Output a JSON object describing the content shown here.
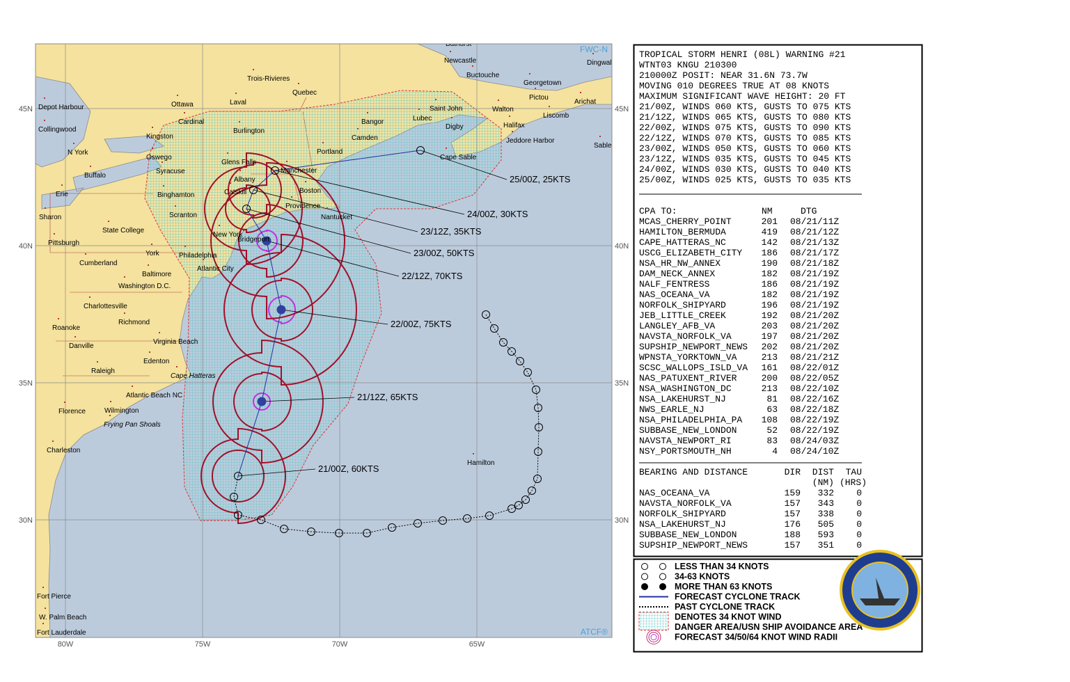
{
  "map": {
    "credits": [
      "FWC-N",
      "ATCF®"
    ],
    "lat_labels": [
      "45N",
      "40N",
      "35N",
      "30N"
    ],
    "lon_labels": [
      "80W",
      "75W",
      "70W",
      "65W"
    ],
    "places": [
      "Bathurst",
      "Newcastle",
      "Trois-Rivieres",
      "Quebec",
      "Buctouche",
      "Georgetown",
      "Dingwall",
      "Pictou",
      "Arichat",
      "Ottawa",
      "Laval",
      "Saint John",
      "Walton",
      "Liscomb",
      "Depot Harbour",
      "Cardinal",
      "Lubec",
      "Bangor",
      "Halifax",
      "Digby",
      "Collingwood",
      "Burlington",
      "Kingston",
      "Camden",
      "Jeddore Harbor",
      "Sable",
      "N York",
      "Portland",
      "Cape Sable",
      "Oswego",
      "Glens Falls",
      "Manchester",
      "Syracuse",
      "Buffalo",
      "Albany",
      "Boston",
      "Erie",
      "Binghamton",
      "Catskill",
      "Providence",
      "Sharon",
      "Scranton",
      "Nantucket",
      "State College",
      "Bridgeport",
      "New York",
      "Pittsburgh",
      "York",
      "Philadelphia",
      "Cumberland",
      "Atlantic City",
      "Baltimore",
      "Washington D.C.",
      "Charlottesville",
      "Richmond",
      "Roanoke",
      "Virginia Beach",
      "Danville",
      "Edenton",
      "Raleigh",
      "Cape Hatteras",
      "Atlantic Beach NC",
      "Florence",
      "Wilmington",
      "Frying Pan Shoals",
      "Charleston",
      "Hamilton",
      "Fort Pierce",
      "W. Palm Beach",
      "Fort Lauderdale"
    ],
    "forecast_labels": [
      "21/00Z, 60KTS",
      "21/12Z, 65KTS",
      "22/00Z, 75KTS",
      "22/12Z, 70KTS",
      "23/00Z, 50KTS",
      "23/12Z, 35KTS",
      "24/00Z, 30KTS",
      "25/00Z, 25KTS"
    ]
  },
  "warning": {
    "lines": [
      "TROPICAL STORM HENRI (08L) WARNING #21",
      "WTNT03 KNGU 210300",
      "210000Z POSIT: NEAR 31.6N 73.7W",
      "MOVING 010 DEGREES TRUE AT 08 KNOTS",
      "MAXIMUM SIGNIFICANT WAVE HEIGHT: 20 FT",
      "21/00Z, WINDS 060 KTS, GUSTS TO 075 KTS",
      "21/12Z, WINDS 065 KTS, GUSTS TO 080 KTS",
      "22/00Z, WINDS 075 KTS, GUSTS TO 090 KTS",
      "22/12Z, WINDS 070 KTS, GUSTS TO 085 KTS",
      "23/00Z, WINDS 050 KTS, GUSTS TO 060 KTS",
      "23/12Z, WINDS 035 KTS, GUSTS TO 045 KTS",
      "24/00Z, WINDS 030 KTS, GUSTS TO 040 KTS",
      "25/00Z, WINDS 025 KTS, GUSTS TO 035 KTS"
    ]
  },
  "cpa": {
    "header": [
      "CPA TO:",
      "NM",
      "DTG"
    ],
    "rows": [
      [
        "MCAS_CHERRY_POINT",
        201,
        "08/21/11Z"
      ],
      [
        "HAMILTON_BERMUDA",
        419,
        "08/21/12Z"
      ],
      [
        "CAPE_HATTERAS_NC",
        142,
        "08/21/13Z"
      ],
      [
        "USCG_ELIZABETH_CITY",
        186,
        "08/21/17Z"
      ],
      [
        "NSA_HR_NW_ANNEX",
        190,
        "08/21/18Z"
      ],
      [
        "DAM_NECK_ANNEX",
        182,
        "08/21/19Z"
      ],
      [
        "NALF_FENTRESS",
        186,
        "08/21/19Z"
      ],
      [
        "NAS_OCEANA_VA",
        182,
        "08/21/19Z"
      ],
      [
        "NORFOLK_SHIPYARD",
        196,
        "08/21/19Z"
      ],
      [
        "JEB_LITTLE_CREEK",
        192,
        "08/21/20Z"
      ],
      [
        "LANGLEY_AFB_VA",
        203,
        "08/21/20Z"
      ],
      [
        "NAVSTA_NORFOLK_VA",
        197,
        "08/21/20Z"
      ],
      [
        "SUPSHIP_NEWPORT_NEWS",
        202,
        "08/21/20Z"
      ],
      [
        "WPNSTA_YORKTOWN_VA",
        213,
        "08/21/21Z"
      ],
      [
        "SCSC_WALLOPS_ISLD_VA",
        161,
        "08/22/01Z"
      ],
      [
        "NAS_PATUXENT_RIVER",
        200,
        "08/22/05Z"
      ],
      [
        "NSA_WASHINGTON_DC",
        213,
        "08/22/10Z"
      ],
      [
        "NSA_LAKEHURST_NJ",
        81,
        "08/22/16Z"
      ],
      [
        "NWS_EARLE_NJ",
        63,
        "08/22/18Z"
      ],
      [
        "NSA_PHILADELPHIA_PA",
        108,
        "08/22/19Z"
      ],
      [
        "SUBBASE_NEW_LONDON",
        52,
        "08/22/19Z"
      ],
      [
        "NAVSTA_NEWPORT_RI",
        83,
        "08/24/03Z"
      ],
      [
        "NSY_PORTSMOUTH_NH",
        4,
        "08/24/10Z"
      ]
    ]
  },
  "bearing": {
    "header": [
      "BEARING AND DISTANCE",
      "DIR",
      "DIST",
      "TAU"
    ],
    "subheader": [
      "(NM)",
      "(HRS)"
    ],
    "rows": [
      [
        "NAS_OCEANA_VA",
        159,
        332,
        0
      ],
      [
        "NAVSTA_NORFOLK_VA",
        157,
        343,
        0
      ],
      [
        "NORFOLK_SHIPYARD",
        157,
        338,
        0
      ],
      [
        "NSA_LAKEHURST_NJ",
        176,
        505,
        0
      ],
      [
        "SUBBASE_NEW_LONDON",
        188,
        593,
        0
      ],
      [
        "SUPSHIP_NEWPORT_NEWS",
        157,
        351,
        0
      ]
    ]
  },
  "legend": {
    "items": [
      "LESS THAN 34 KNOTS",
      "34-63 KNOTS",
      "MORE THAN 63 KNOTS",
      "FORECAST CYCLONE TRACK",
      "PAST CYCLONE TRACK",
      "DENOTES 34 KNOT WIND",
      "DANGER AREA/USN SHIP AVOIDANCE AREA",
      "FORECAST 34/50/64 KNOT WIND RADII"
    ]
  }
}
